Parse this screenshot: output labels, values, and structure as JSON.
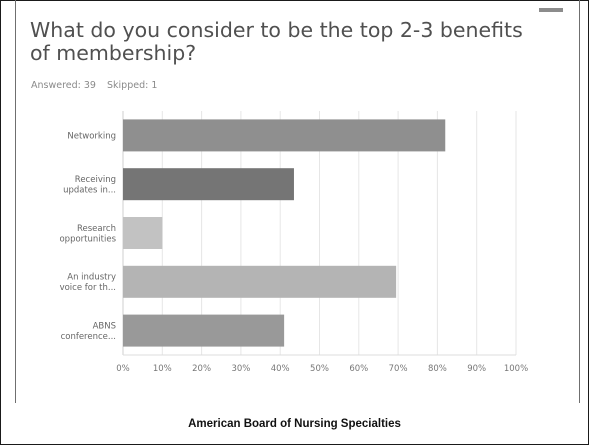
{
  "title": "What do you consider to be the top 2-3 benefits of membership?",
  "answered": "Answered: 39",
  "skipped": "Skipped: 1",
  "footer": "American Board of Nursing Specialties",
  "chart_data": {
    "type": "bar",
    "orientation": "horizontal",
    "categories": [
      [
        "Networking"
      ],
      [
        "Receiving",
        "updates in..."
      ],
      [
        "Research",
        "opportunities"
      ],
      [
        "An industry",
        "voice for th..."
      ],
      [
        "ABNS",
        "conference..."
      ]
    ],
    "values": [
      82,
      43.5,
      10,
      69.5,
      41
    ],
    "colors": [
      "#8f8f8f",
      "#757575",
      "#c2c2c2",
      "#b4b4b4",
      "#999999"
    ],
    "xticks": [
      "0%",
      "10%",
      "20%",
      "30%",
      "40%",
      "50%",
      "60%",
      "70%",
      "80%",
      "90%",
      "100%"
    ],
    "xlim": [
      0,
      100
    ],
    "grid": true
  }
}
